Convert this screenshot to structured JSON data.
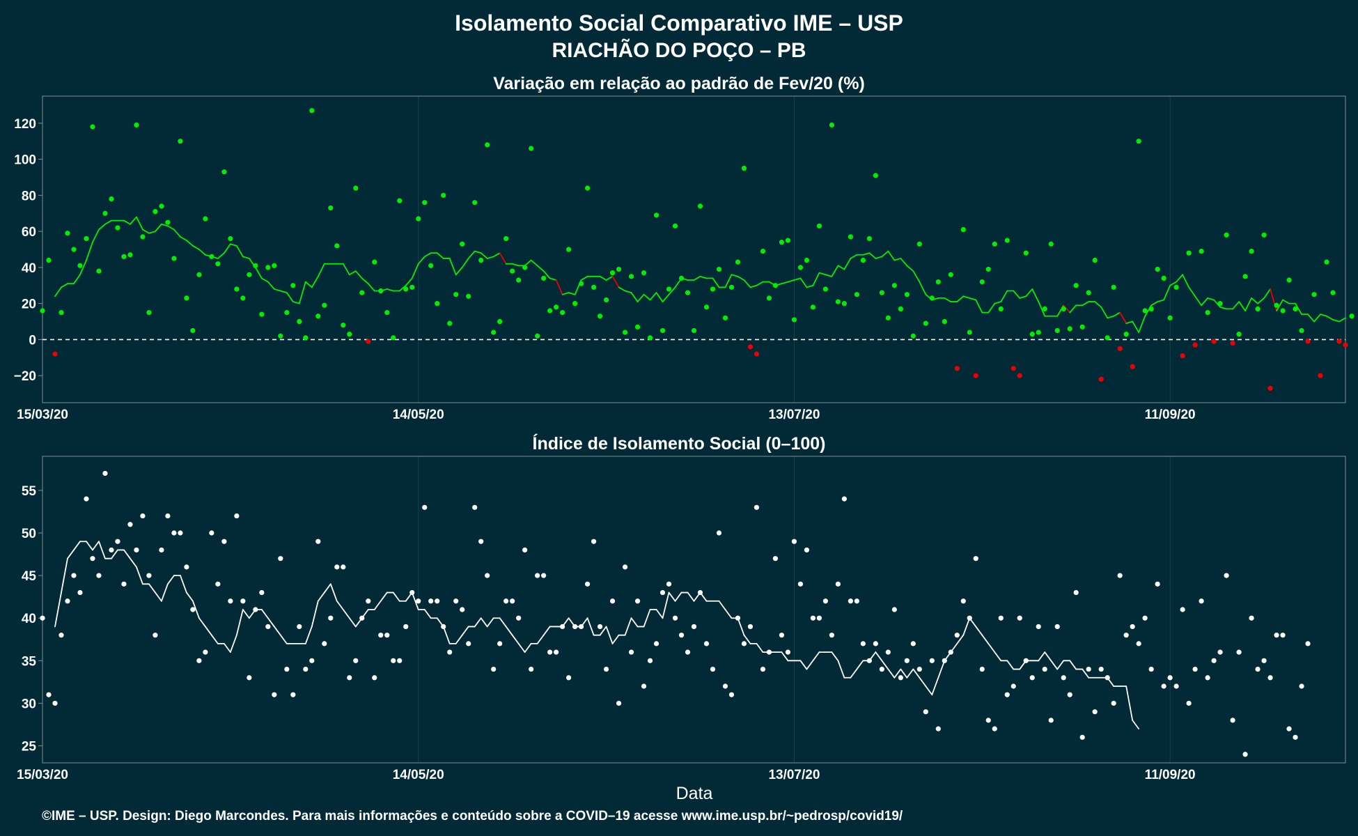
{
  "header": {
    "title_line1": "Isolamento Social Comparativo IME – USP",
    "title_line2": "RIACHÃO DO POÇO – PB"
  },
  "x_axis": {
    "title": "Data",
    "ticks": [
      {
        "label": "15/03/20",
        "day": 0
      },
      {
        "label": "14/05/20",
        "day": 60
      },
      {
        "label": "13/07/20",
        "day": 120
      },
      {
        "label": "11/09/20",
        "day": 180
      }
    ]
  },
  "footer": "©IME – USP. Design: Diego Marcondes. Para mais informações e conteúdo sobre a COVID–19 acesse www.ime.usp.br/~pedrosp/covid19/",
  "colors": {
    "background": "#022a36",
    "above_zero": "#00ee00",
    "below_zero": "#ee0000",
    "index": "#ffffff",
    "grid": "#16404c",
    "panel_border": "#7f8f94"
  },
  "chart_data": [
    {
      "type": "scatter",
      "title": "Variação em relação ao padrão de Fev/20 (%)",
      "x_start_date": "15/03/20",
      "x_unit": "days",
      "xlim": [
        0,
        208
      ],
      "ylim": [
        -35,
        135
      ],
      "yticks": [
        120,
        100,
        80,
        60,
        40,
        20,
        0,
        -20
      ],
      "reference_line": 0,
      "points": [
        16,
        44,
        -8,
        15,
        59,
        50,
        41,
        56,
        118,
        38,
        70,
        78,
        62,
        46,
        47,
        119,
        57,
        15,
        71,
        74,
        65,
        45,
        110,
        23,
        5,
        36,
        67,
        46,
        42,
        93,
        56,
        28,
        23,
        36,
        41,
        14,
        40,
        41,
        2,
        15,
        30,
        10,
        1,
        127,
        13,
        19,
        73,
        52,
        8,
        3,
        84,
        26,
        -1,
        43,
        27,
        15,
        1,
        77,
        28,
        29,
        67,
        76,
        41,
        20,
        80,
        9,
        25,
        53,
        24,
        76,
        44,
        108,
        4,
        10,
        56,
        38,
        33,
        40,
        106,
        2,
        34,
        16,
        18,
        15,
        50,
        20,
        31,
        84,
        29,
        13,
        22,
        37,
        39,
        4,
        35,
        7,
        37,
        1,
        69,
        5,
        28,
        63,
        34,
        26,
        5,
        74,
        18,
        28,
        39,
        12,
        29,
        43,
        95,
        -4,
        -8,
        49,
        23,
        30,
        54,
        55,
        11,
        40,
        44,
        18,
        63,
        28,
        119,
        21,
        20,
        57,
        25,
        44,
        56,
        91,
        26,
        12,
        30,
        17,
        25,
        2,
        53,
        9,
        23,
        32,
        10,
        36,
        -16,
        61,
        4,
        -20,
        32,
        39,
        53,
        17,
        55,
        -16,
        -20,
        48,
        3,
        4,
        17,
        53,
        5,
        17,
        6,
        30,
        7,
        26,
        44,
        -22,
        1,
        29,
        -5,
        3,
        -15,
        110,
        16,
        17,
        39,
        34,
        12,
        29,
        -9,
        48,
        -3,
        49,
        15,
        -1,
        20,
        58,
        -2,
        3,
        35,
        49,
        17,
        58,
        -27,
        19,
        16,
        33,
        17,
        5,
        -1,
        25,
        -20,
        43,
        26,
        -1,
        -3,
        13
      ],
      "moving_average": [
        24,
        29,
        31,
        31,
        36,
        44,
        54,
        61,
        64,
        66,
        66,
        66,
        64,
        68,
        61,
        59,
        60,
        64,
        63,
        61,
        57,
        55,
        52,
        50,
        47,
        46,
        45,
        48,
        53,
        52,
        46,
        45,
        40,
        34,
        32,
        28,
        27,
        26,
        21,
        20,
        32,
        29,
        35,
        42,
        42,
        42,
        42,
        36,
        38,
        34,
        31,
        27,
        27,
        28,
        27,
        27,
        30,
        34,
        42,
        46,
        48,
        48,
        45,
        45,
        36,
        40,
        45,
        49,
        48,
        45,
        46,
        48,
        42,
        42,
        41,
        41,
        44,
        41,
        38,
        34,
        33,
        25,
        26,
        25,
        33,
        35,
        35,
        35,
        33,
        35,
        29,
        27,
        26,
        21,
        25,
        22,
        26,
        21,
        25,
        29,
        34,
        33,
        33,
        35,
        34,
        34,
        29,
        29,
        36,
        35,
        33,
        29,
        30,
        32,
        32,
        30,
        31,
        32,
        33,
        34,
        29,
        30,
        37,
        36,
        35,
        41,
        39,
        45,
        47,
        47,
        48,
        45,
        46,
        49,
        44,
        45,
        41,
        38,
        32,
        25,
        22,
        23,
        23,
        21,
        21,
        24,
        23,
        22,
        15,
        15,
        20,
        21,
        27,
        27,
        23,
        24,
        28,
        21,
        13,
        13,
        13,
        19,
        15,
        19,
        19,
        21,
        21,
        18,
        12,
        13,
        15,
        9,
        10,
        4,
        13,
        19,
        21,
        22,
        30,
        32,
        36,
        29,
        24,
        19,
        23,
        22,
        18,
        17,
        17,
        21,
        16,
        23,
        20,
        23,
        28,
        16,
        22,
        20,
        20,
        14,
        14,
        10,
        14,
        13,
        11,
        10,
        12
      ]
    },
    {
      "type": "scatter",
      "title": "Índice de Isolamento Social (0–100)",
      "x_start_date": "15/03/20",
      "x_unit": "days",
      "xlim": [
        0,
        208
      ],
      "ylim": [
        23,
        59
      ],
      "yticks": [
        55,
        50,
        45,
        40,
        35,
        30,
        25
      ],
      "points": [
        40,
        31,
        30,
        38,
        42,
        45,
        43,
        54,
        47,
        45,
        57,
        48,
        49,
        44,
        51,
        48,
        52,
        45,
        38,
        48,
        52,
        50,
        50,
        46,
        41,
        35,
        36,
        50,
        44,
        49,
        42,
        52,
        42,
        33,
        41,
        43,
        39,
        31,
        47,
        34,
        31,
        39,
        34,
        35,
        49,
        37,
        40,
        46,
        46,
        33,
        35,
        40,
        42,
        33,
        38,
        38,
        35,
        35,
        39,
        43,
        42,
        53,
        42,
        42,
        39,
        36,
        42,
        41,
        37,
        53,
        49,
        45,
        34,
        37,
        42,
        42,
        40,
        48,
        34,
        45,
        45,
        36,
        36,
        39,
        33,
        39,
        39,
        44,
        49,
        39,
        34,
        42,
        30,
        46,
        36,
        42,
        32,
        35,
        37,
        43,
        44,
        40,
        38,
        36,
        39,
        43,
        37,
        34,
        50,
        32,
        31,
        40,
        37,
        39,
        53,
        34,
        36,
        47,
        38,
        36,
        49,
        44,
        48,
        40,
        40,
        42,
        38,
        44,
        54,
        42,
        42,
        37,
        35,
        37,
        34,
        36,
        41,
        33,
        35,
        37,
        34,
        29,
        35,
        27,
        35,
        36,
        38,
        42,
        40,
        47,
        34,
        28,
        27,
        40,
        31,
        32,
        40,
        35,
        33,
        39,
        34,
        28,
        39,
        33,
        31,
        43,
        26,
        34,
        29,
        34,
        33,
        30,
        45,
        38,
        39,
        37,
        40,
        34,
        44,
        32,
        33,
        32,
        41,
        30,
        34,
        42,
        33,
        35,
        36,
        45,
        28,
        36,
        24,
        40,
        34,
        35,
        33,
        38,
        38,
        27,
        26,
        32,
        37
      ],
      "moving_average": [
        39,
        43,
        47,
        48,
        49,
        49,
        48,
        49,
        47,
        47,
        48,
        48,
        47,
        46,
        44,
        44,
        43,
        42,
        44,
        45,
        45,
        43,
        42,
        40,
        39,
        38,
        37,
        37,
        36,
        38,
        41,
        40,
        41,
        41,
        40,
        39,
        38,
        37,
        37,
        37,
        37,
        39,
        42,
        43,
        44,
        42,
        41,
        40,
        39,
        40,
        41,
        41,
        42,
        43,
        43,
        42,
        42,
        43,
        41,
        41,
        40,
        40,
        39,
        37,
        37,
        38,
        39,
        39,
        40,
        39,
        40,
        40,
        39,
        38,
        37,
        36,
        37,
        37,
        38,
        39,
        39,
        39,
        40,
        39,
        39,
        40,
        38,
        38,
        39,
        37,
        38,
        38,
        40,
        39,
        39,
        41,
        41,
        40,
        43,
        42,
        43,
        43,
        42,
        43,
        42,
        42,
        42,
        41,
        40,
        40,
        38,
        37,
        37,
        36,
        36,
        36,
        36,
        35,
        35,
        35,
        34,
        35,
        36,
        36,
        36,
        35,
        33,
        33,
        34,
        35,
        35,
        36,
        35,
        34,
        33,
        34,
        33,
        34,
        33,
        32,
        31,
        33,
        35,
        36,
        37,
        38,
        40,
        39,
        38,
        37,
        36,
        35,
        35,
        34,
        34,
        35,
        35,
        35,
        36,
        35,
        34,
        35,
        35,
        34,
        34,
        33,
        33,
        33,
        33,
        32,
        32,
        32,
        28,
        27
      ]
    }
  ]
}
